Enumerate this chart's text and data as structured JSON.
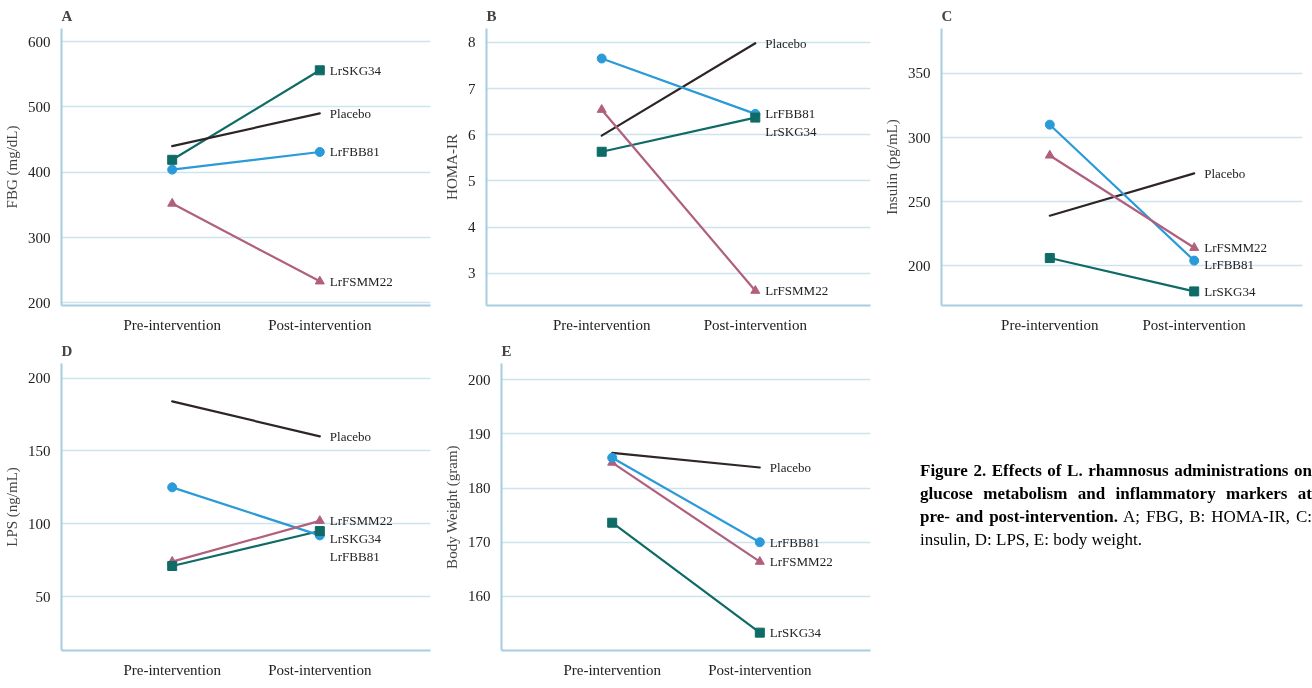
{
  "chart_data": [
    {
      "type": "line",
      "title": "A",
      "categories": [
        "Pre-intervention",
        "Post-intervention"
      ],
      "ylabel": "FBG (mg/dL)",
      "ylim": [
        196,
        620
      ],
      "yticks": [
        200,
        300,
        400,
        500,
        600
      ],
      "grid": "y",
      "series": [
        {
          "name": "LrSKG34",
          "color": "#0e6b66",
          "marker": "square",
          "values": [
            419,
            556
          ]
        },
        {
          "name": "Placebo",
          "color": "#2e2626",
          "marker": "none",
          "values": [
            440,
            490
          ]
        },
        {
          "name": "LrFBB81",
          "color": "#2a9ad8",
          "marker": "circle",
          "values": [
            404,
            431
          ]
        },
        {
          "name": "LrFSMM22",
          "color": "#b0607e",
          "marker": "triangle",
          "values": [
            352,
            233
          ]
        }
      ]
    },
    {
      "type": "line",
      "title": "B",
      "categories": [
        "Pre-intervention",
        "Post-intervention"
      ],
      "ylabel": "HOMA-IR",
      "ylim": [
        2.3,
        8.3
      ],
      "yticks": [
        3,
        4,
        5,
        6,
        7,
        8
      ],
      "grid": "y",
      "series": [
        {
          "name": "LrSKG34",
          "color": "#0e6b66",
          "marker": "square",
          "values": [
            5.63,
            6.37
          ]
        },
        {
          "name": "Placebo",
          "color": "#2e2626",
          "marker": "none",
          "values": [
            5.98,
            7.98
          ]
        },
        {
          "name": "LrFBB81",
          "color": "#2a9ad8",
          "marker": "circle",
          "values": [
            7.65,
            6.45
          ]
        },
        {
          "name": "LrFSMM22",
          "color": "#b0607e",
          "marker": "triangle",
          "values": [
            6.54,
            2.62
          ]
        }
      ]
    },
    {
      "type": "line",
      "title": "C",
      "categories": [
        "Pre-intervention",
        "Post-intervention"
      ],
      "ylabel": "Insulin (pg/mL)",
      "ylim": [
        169,
        385
      ],
      "yticks": [
        200,
        250,
        300,
        350
      ],
      "grid": "y",
      "series": [
        {
          "name": "LrSKG34",
          "color": "#0e6b66",
          "marker": "square",
          "values": [
            206,
            180
          ]
        },
        {
          "name": "Placebo",
          "color": "#2e2626",
          "marker": "none",
          "values": [
            239,
            272
          ]
        },
        {
          "name": "LrFBB81",
          "color": "#2a9ad8",
          "marker": "circle",
          "values": [
            310,
            204
          ]
        },
        {
          "name": "LrFSMM22",
          "color": "#b0607e",
          "marker": "triangle",
          "values": [
            286,
            214
          ]
        }
      ]
    },
    {
      "type": "line",
      "title": "D",
      "categories": [
        "Pre-intervention",
        "Post-intervention"
      ],
      "ylabel": "LPS (ng/mL)",
      "ylim": [
        13,
        210
      ],
      "yticks": [
        50,
        100,
        150,
        200
      ],
      "grid": "y",
      "series": [
        {
          "name": "LrSKG34",
          "color": "#0e6b66",
          "marker": "square",
          "values": [
            71,
            95
          ]
        },
        {
          "name": "Placebo",
          "color": "#2e2626",
          "marker": "none",
          "values": [
            184,
            160
          ]
        },
        {
          "name": "LrFBB81",
          "color": "#2a9ad8",
          "marker": "circle",
          "values": [
            125,
            92
          ]
        },
        {
          "name": "LrFSMM22",
          "color": "#b0607e",
          "marker": "triangle",
          "values": [
            74,
            102
          ]
        }
      ]
    },
    {
      "type": "line",
      "title": "E",
      "categories": [
        "Pre-intervention",
        "Post-intervention"
      ],
      "ylabel": "Body Weight (gram)",
      "ylim": [
        150,
        203
      ],
      "yticks": [
        160,
        170,
        180,
        190,
        200
      ],
      "grid": "y",
      "series": [
        {
          "name": "LrSKG34",
          "color": "#0e6b66",
          "marker": "square",
          "values": [
            173.6,
            153.3
          ]
        },
        {
          "name": "Placebo",
          "color": "#2e2626",
          "marker": "none",
          "values": [
            186.5,
            183.8
          ]
        },
        {
          "name": "LrFBB81",
          "color": "#2a9ad8",
          "marker": "circle",
          "values": [
            185.6,
            170
          ]
        },
        {
          "name": "LrFSMM22",
          "color": "#b0607e",
          "marker": "triangle",
          "values": [
            184.7,
            166.4
          ]
        }
      ]
    },
    {
      "type": "other",
      "title": "Figure 2. Effects of L. rhamnosus administrations on glucose metabolism and inflammatory markers at pre- and post-intervention.",
      "annotations": [
        "A; FBG, B: HOMA-IR, C: insulin, D: LPS, E: body weight."
      ]
    }
  ]
}
